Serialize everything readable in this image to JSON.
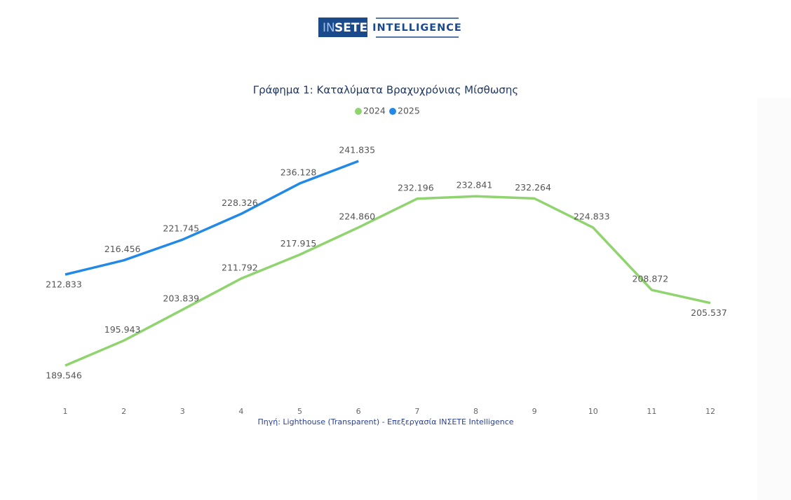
{
  "header": {
    "logo": [
      "IN",
      "SETE",
      "INTELLIGENCE"
    ]
  },
  "chart_data": {
    "type": "line",
    "title": "Γράφημα 1: Καταλύματα Βραχυχρόνιας Μίσθωσης",
    "source": "Πηγή: Lighthouse (Transparent) - Επεξεργασία INΣΕΤΕ Intelligence",
    "x": [
      1,
      2,
      3,
      4,
      5,
      6,
      7,
      8,
      9,
      10,
      11,
      12
    ],
    "legend": "top",
    "series": [
      {
        "name": "2024",
        "color": "#8fd46e",
        "values": [
          189.546,
          195.943,
          203.839,
          211.792,
          217.915,
          224.86,
          232.196,
          232.841,
          232.264,
          224.833,
          208.872,
          205.537
        ],
        "value_labels": [
          "189.546",
          "195.943",
          "203.839",
          "211.792",
          "217.915",
          "224.860",
          "232.196",
          "232.841",
          "232.264",
          "224.833",
          "208.872",
          "205.537"
        ]
      },
      {
        "name": "2025",
        "color": "#2389e6",
        "values": [
          212.833,
          216.456,
          221.745,
          228.326,
          236.128,
          241.835,
          null,
          null,
          null,
          null,
          null,
          null
        ],
        "value_labels": [
          "212.833",
          "216.456",
          "221.745",
          "228.326",
          "236.128",
          "241.835",
          null,
          null,
          null,
          null,
          null,
          null
        ]
      }
    ]
  }
}
